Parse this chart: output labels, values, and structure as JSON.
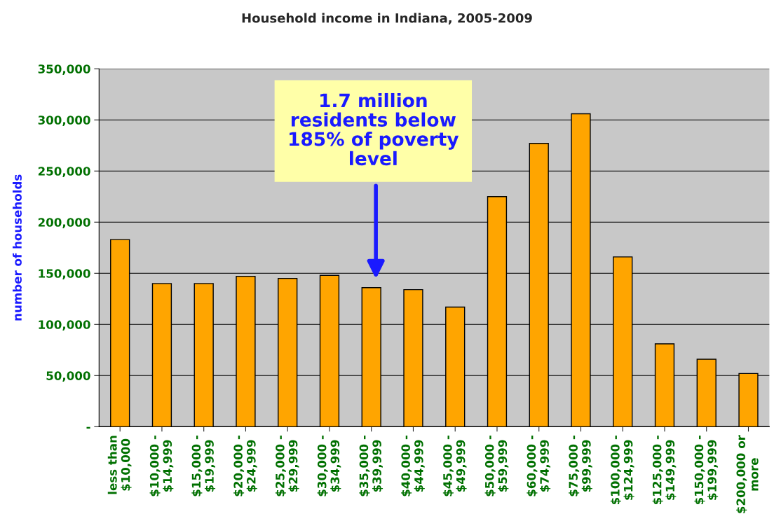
{
  "chart_data": {
    "type": "bar",
    "title": "Household income in Indiana, 2005-2009",
    "ylabel": "number of households",
    "categories": [
      "less than\n$10,000",
      "$10,000 -\n$14,999",
      "$15,000 -\n$19,999",
      "$20,000 -\n$24,999",
      "$25,000 -\n$29,999",
      "$30,000 -\n$34,999",
      "$35,000 -\n$39,999",
      "$40,000 -\n$44,999",
      "$45,000 -\n$49,999",
      "$50,000 -\n$59,999",
      "$60,000 -\n$74,999",
      "$75,000 -\n$99,999",
      "$100,000 -\n$124,999",
      "$125,000 -\n$149,999",
      "$150,000 -\n$199,999",
      "$200,000 or\nmore"
    ],
    "values": [
      183000,
      140000,
      140000,
      147000,
      145000,
      148000,
      136000,
      134000,
      117000,
      225000,
      277000,
      306000,
      166000,
      81000,
      66000,
      52000
    ],
    "color": "#ffa500",
    "ylim": [
      0,
      350000
    ],
    "yticks": [
      {
        "value": 0,
        "label": "-"
      },
      {
        "value": 50000,
        "label": "50,000"
      },
      {
        "value": 100000,
        "label": "100,000"
      },
      {
        "value": 150000,
        "label": "150,000"
      },
      {
        "value": 200000,
        "label": "200,000"
      },
      {
        "value": 250000,
        "label": "250,000"
      },
      {
        "value": 300000,
        "label": "300,000"
      },
      {
        "value": 350000,
        "label": "350,000"
      }
    ],
    "grid": "y",
    "annotations": [
      "1.7 million\nresidents below\n185% of poverty\nlevel"
    ]
  }
}
